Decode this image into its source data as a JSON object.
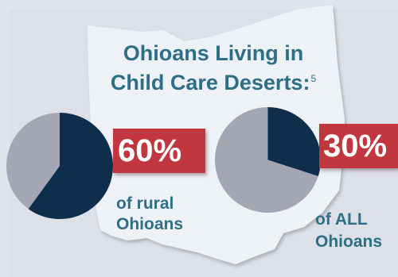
{
  "title": {
    "line1": "Ohioans Living in",
    "line2": "Child Care Deserts:",
    "footnote": "5"
  },
  "colors": {
    "primary": "#0e2e4c",
    "remainder": "#a4a6b4",
    "band": "#c1363f",
    "text": "#2c6f86",
    "map": "#eef1f5"
  },
  "chart_data": [
    {
      "type": "pie",
      "title": "Ohioans Living in Child Care Deserts:",
      "labels": [
        "of rural Ohioans",
        ""
      ],
      "values": [
        60,
        40
      ],
      "value_label": "60%",
      "caption_line1": "of rural",
      "caption_line2": "Ohioans"
    },
    {
      "type": "pie",
      "title": "Ohioans Living in Child Care Deserts:",
      "labels": [
        "of ALL Ohioans",
        ""
      ],
      "values": [
        30,
        70
      ],
      "value_label": "30%",
      "caption_line1": "of ALL",
      "caption_line2": "Ohioans"
    }
  ]
}
